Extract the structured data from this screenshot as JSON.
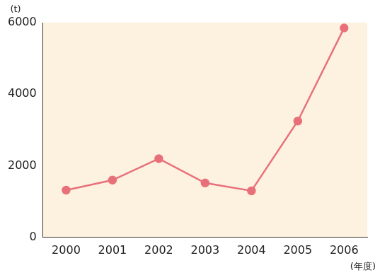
{
  "chart_data": {
    "type": "line",
    "y_label": "(t)",
    "x_label": "(年度)",
    "categories": [
      "2000",
      "2001",
      "2002",
      "2003",
      "2004",
      "2005",
      "2006"
    ],
    "values": [
      1320,
      1600,
      2200,
      1520,
      1300,
      3250,
      5850
    ],
    "color": "#e8707a",
    "marker": "circle",
    "line_style": "solid",
    "ylim": [
      0,
      6000
    ],
    "yticks": [
      0,
      2000,
      4000,
      6000
    ],
    "grid": false
  }
}
